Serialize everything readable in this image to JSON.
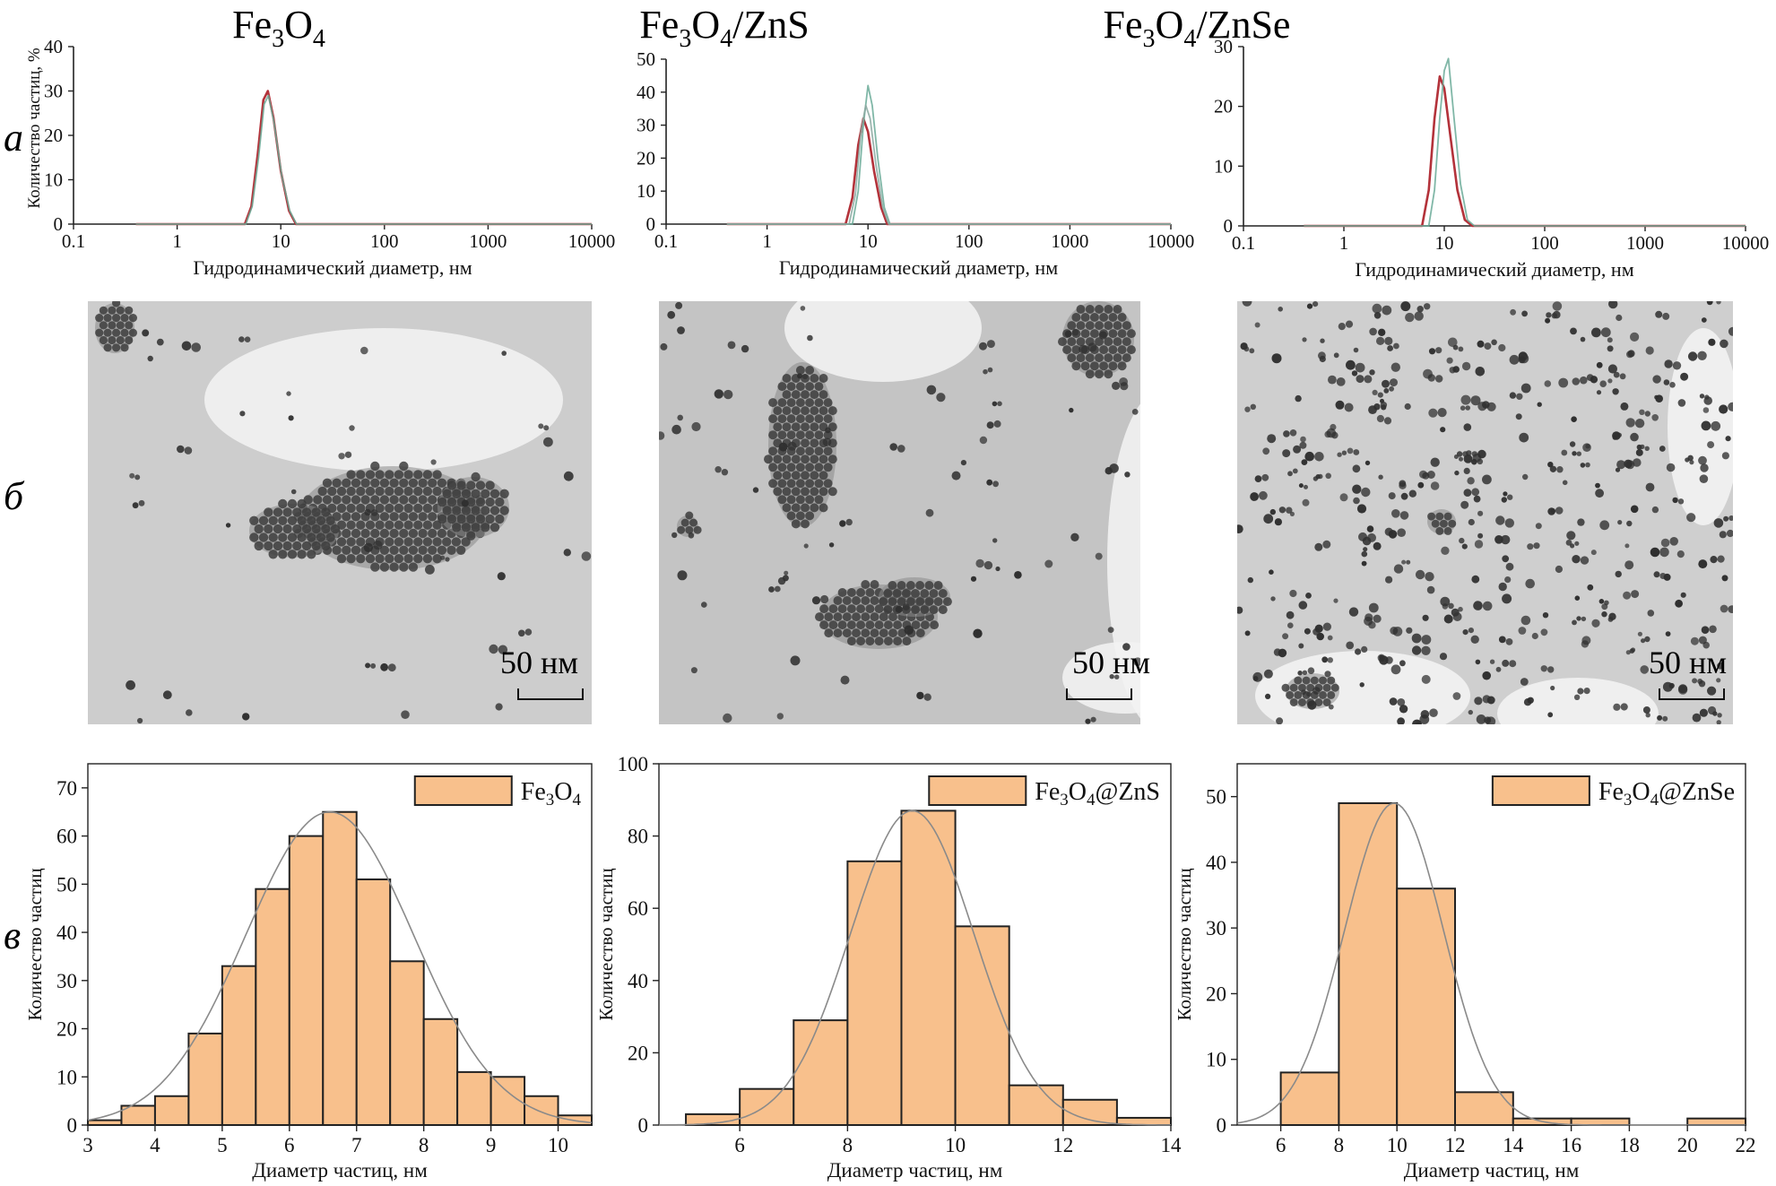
{
  "columns": [
    {
      "title_main": "Fe",
      "title_sub1": "3",
      "title_mid": "O",
      "title_sub2": "4",
      "title_tail": ""
    },
    {
      "title_main": "Fe",
      "title_sub1": "3",
      "title_mid": "O",
      "title_sub2": "4",
      "title_tail": "/ZnS"
    },
    {
      "title_main": "Fe",
      "title_sub1": "3",
      "title_mid": "O",
      "title_sub2": "4",
      "title_tail": "/ZnSe"
    }
  ],
  "row_labels": {
    "a": "а",
    "b": "б",
    "c": "в"
  },
  "scale_bar_label": "50 нм",
  "colors": {
    "dls_red": "#b3323a",
    "dls_green": "#6aaa98",
    "hist_fill": "#f8c08c",
    "hist_edge": "#222222",
    "fit_line": "#8a8a8a"
  },
  "chart_data": [
    {
      "type": "line",
      "panel": "a1",
      "x_scale": "log",
      "xlabel": "Гидродинамический диаметр, нм",
      "ylabel": "Количество частиц, %",
      "xlim": [
        0.1,
        10000
      ],
      "ylim": [
        0,
        40
      ],
      "xticks": [
        "0.1",
        "1",
        "10",
        "100",
        "1000",
        "10000"
      ],
      "yticks": [
        0,
        10,
        20,
        30,
        40
      ],
      "series": [
        {
          "color": "#b3323a",
          "x": [
            0.4,
            4.5,
            5.2,
            6.0,
            6.8,
            7.5,
            8.5,
            10,
            12,
            14,
            10000
          ],
          "y": [
            0,
            0,
            4,
            16,
            28,
            30,
            24,
            12,
            3,
            0,
            0
          ]
        },
        {
          "color": "#6aaa98",
          "x": [
            0.4,
            4.6,
            5.3,
            6.1,
            6.9,
            7.6,
            8.6,
            10.2,
            12.2,
            14.2,
            10000
          ],
          "y": [
            0,
            0,
            4,
            15,
            27,
            29,
            23,
            11,
            3,
            0,
            0
          ]
        }
      ]
    },
    {
      "type": "line",
      "panel": "a2",
      "x_scale": "log",
      "xlabel": "Гидродинамический диаметр, нм",
      "ylabel": "",
      "xlim": [
        0.1,
        10000
      ],
      "ylim": [
        0,
        50
      ],
      "xticks": [
        "0.1",
        "1",
        "10",
        "100",
        "1000",
        "10000"
      ],
      "yticks": [
        0,
        10,
        20,
        30,
        40,
        50
      ],
      "series": [
        {
          "color": "#b3323a",
          "x": [
            0.4,
            6.0,
            7.0,
            8.0,
            9.0,
            10.0,
            11.5,
            13.5,
            15.5,
            10000
          ],
          "y": [
            0,
            0,
            8,
            24,
            32,
            28,
            16,
            5,
            0,
            0
          ]
        },
        {
          "color": "#6aaa98",
          "x": [
            0.4,
            7.0,
            8.0,
            9.0,
            10.0,
            11.0,
            12.5,
            14.5,
            16.5,
            10000
          ],
          "y": [
            0,
            0,
            10,
            30,
            42,
            36,
            20,
            5,
            0,
            0
          ]
        },
        {
          "color": "#8aa8a0",
          "x": [
            0.4,
            6.5,
            7.5,
            8.5,
            9.5,
            10.5,
            12.0,
            14.0,
            16.0,
            10000
          ],
          "y": [
            0,
            0,
            9,
            28,
            36,
            32,
            18,
            5,
            0,
            0
          ]
        }
      ]
    },
    {
      "type": "line",
      "panel": "a3",
      "x_scale": "log",
      "xlabel": "Гидродинамический диаметр, нм",
      "ylabel": "",
      "xlim": [
        0.1,
        10000
      ],
      "ylim": [
        0,
        30
      ],
      "xticks": [
        "0.1",
        "1",
        "10",
        "100",
        "1000",
        "10000"
      ],
      "yticks": [
        0,
        10,
        20,
        30
      ],
      "series": [
        {
          "color": "#b3323a",
          "x": [
            0.4,
            6.0,
            7.0,
            8.0,
            9.0,
            10.0,
            11.5,
            13.5,
            16.0,
            19.0,
            10000
          ],
          "y": [
            0,
            0,
            6,
            18,
            25,
            23,
            15,
            6,
            1,
            0,
            0
          ]
        },
        {
          "color": "#6aaa98",
          "x": [
            0.4,
            7.0,
            8.0,
            9.0,
            10.0,
            11.0,
            12.5,
            14.5,
            17.0,
            20.0,
            10000
          ],
          "y": [
            0,
            0,
            6,
            18,
            26,
            28,
            18,
            7,
            1,
            0,
            0
          ]
        }
      ]
    },
    {
      "type": "bar",
      "panel": "c1",
      "xlabel": "Диаметр частиц, нм",
      "ylabel": "Количество частиц",
      "xlim": [
        3,
        10.5
      ],
      "ylim": [
        0,
        75
      ],
      "xticks": [
        3,
        4,
        5,
        6,
        7,
        8,
        9,
        10
      ],
      "yticks": [
        0,
        10,
        20,
        30,
        40,
        50,
        60,
        70
      ],
      "legend": {
        "label_main": "Fe",
        "label_sub1": "3",
        "label_mid": "O",
        "label_sub2": "4",
        "label_tail": ""
      },
      "bin_edges": [
        3,
        3.5,
        4,
        4.5,
        5,
        5.5,
        6,
        6.5,
        7,
        7.5,
        8,
        8.5,
        9,
        9.5,
        10,
        10.5
      ],
      "values": [
        1,
        4,
        6,
        19,
        33,
        49,
        60,
        65,
        51,
        34,
        22,
        11,
        10,
        6,
        2
      ],
      "fit": {
        "type": "gauss",
        "mu": 6.6,
        "sigma": 1.25,
        "amp": 65
      }
    },
    {
      "type": "bar",
      "panel": "c2",
      "xlabel": "Диаметр частиц, нм",
      "ylabel": "Количество частиц",
      "xlim": [
        4.5,
        14
      ],
      "ylim": [
        0,
        100
      ],
      "xticks": [
        6,
        8,
        10,
        12,
        14
      ],
      "yticks": [
        0,
        20,
        40,
        60,
        80,
        100
      ],
      "legend": {
        "label_main": "Fe",
        "label_sub1": "3",
        "label_mid": "O",
        "label_sub2": "4",
        "label_tail": "@ZnS"
      },
      "bin_edges": [
        5,
        6,
        7,
        8,
        9,
        10,
        11,
        12,
        13,
        14
      ],
      "values": [
        3,
        10,
        29,
        73,
        87,
        55,
        11,
        7,
        2
      ],
      "fit": {
        "type": "gauss",
        "mu": 9.2,
        "sigma": 1.15,
        "amp": 87
      }
    },
    {
      "type": "bar",
      "panel": "c3",
      "xlabel": "Диаметр частиц, нм",
      "ylabel": "Количество частиц",
      "xlim": [
        4.5,
        22
      ],
      "ylim": [
        0,
        55
      ],
      "xticks": [
        6,
        8,
        10,
        12,
        14,
        16,
        18,
        20,
        22
      ],
      "yticks": [
        0,
        10,
        20,
        30,
        40,
        50
      ],
      "legend": {
        "label_main": "Fe",
        "label_sub1": "3",
        "label_mid": "O",
        "label_sub2": "4",
        "label_tail": "@ZnSe"
      },
      "bin_edges": [
        6,
        8,
        10,
        12,
        14,
        16,
        18,
        20,
        22
      ],
      "values": [
        8,
        49,
        36,
        5,
        1,
        1,
        0,
        1
      ],
      "fit": {
        "type": "gauss",
        "mu": 9.9,
        "sigma": 1.7,
        "amp": 49
      }
    }
  ]
}
